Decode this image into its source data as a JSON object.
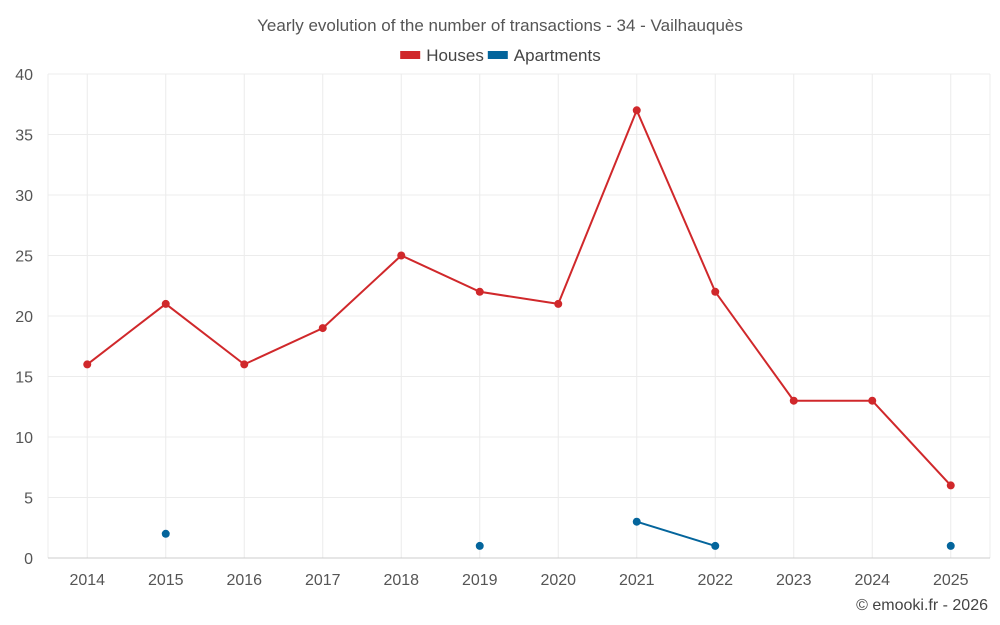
{
  "chart_data": {
    "type": "line",
    "title": "Yearly evolution of the number of transactions - 34 - Vailhauquès",
    "xlabel": "",
    "ylabel": "",
    "x": [
      "2014",
      "2015",
      "2016",
      "2017",
      "2018",
      "2019",
      "2020",
      "2021",
      "2022",
      "2023",
      "2024",
      "2025"
    ],
    "ylim": [
      0,
      40
    ],
    "yticks": [
      0,
      5,
      10,
      15,
      20,
      25,
      30,
      35,
      40
    ],
    "grid": true,
    "legend_position": "top-center",
    "series": [
      {
        "name": "Houses",
        "color": "#d0282b",
        "values": [
          16,
          21,
          16,
          19,
          25,
          22,
          21,
          37,
          22,
          13,
          13,
          6
        ]
      },
      {
        "name": "Apartments",
        "color": "#04659c",
        "values": [
          null,
          2,
          null,
          null,
          null,
          1,
          null,
          3,
          1,
          null,
          null,
          1
        ]
      }
    ]
  },
  "credit": "© emooki.fr - 2026"
}
